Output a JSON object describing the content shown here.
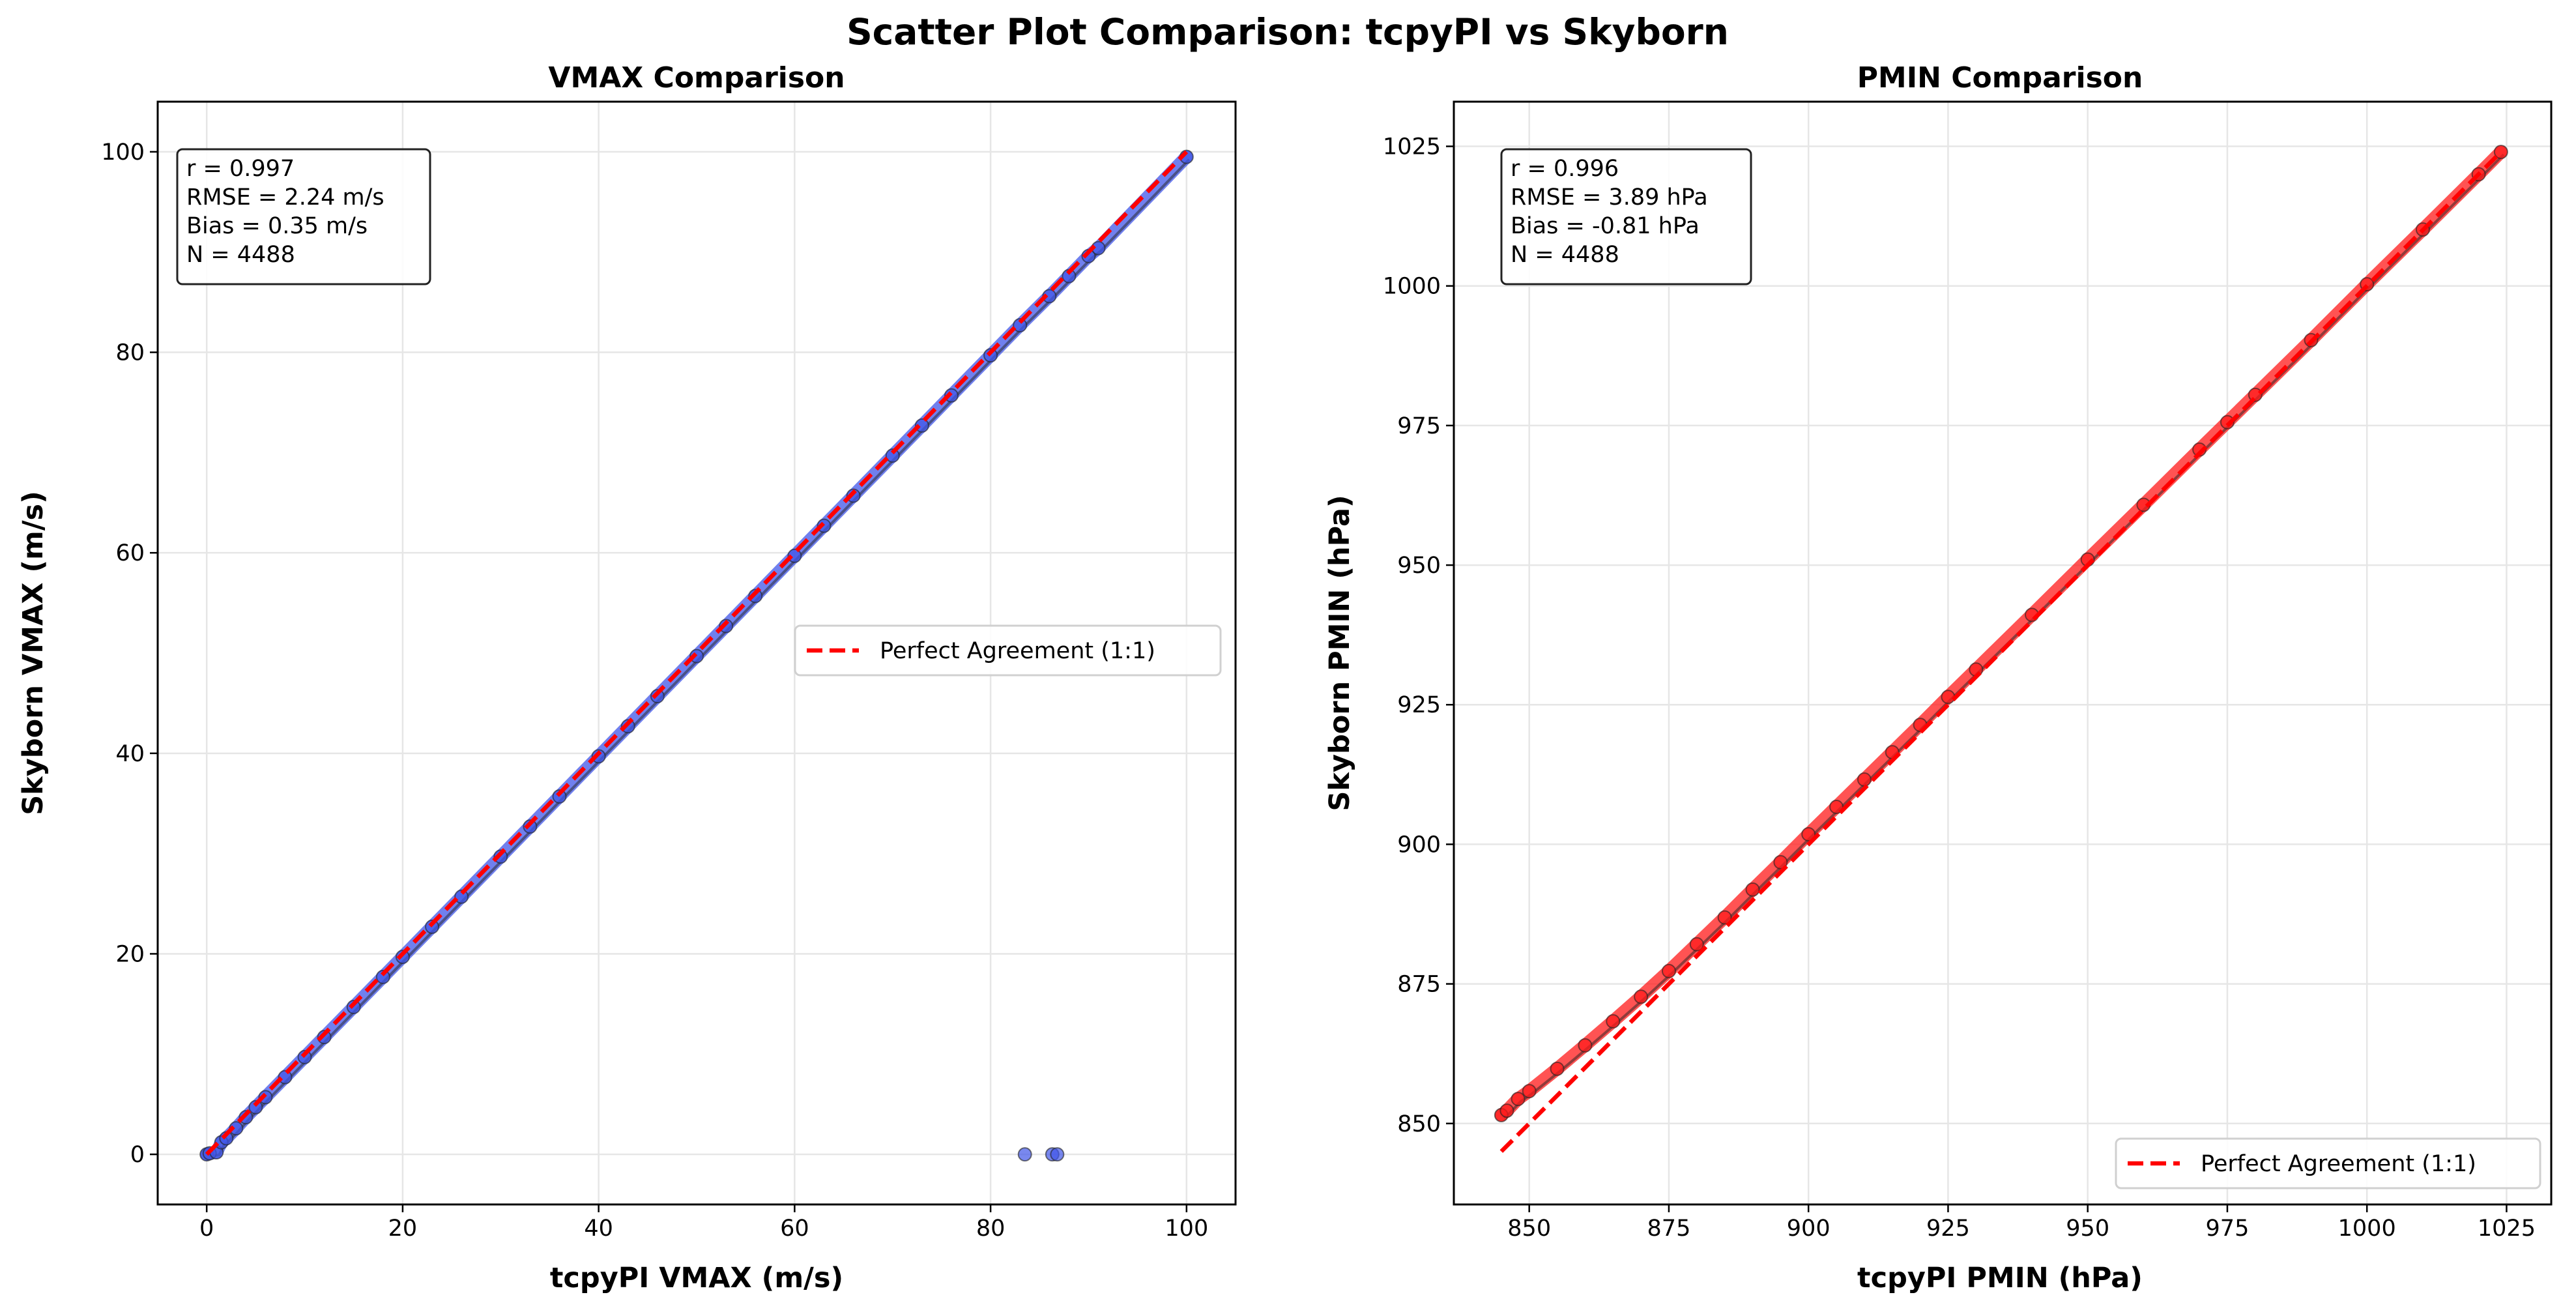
{
  "suptitle": "Scatter Plot Comparison: tcpyPI vs Skyborn",
  "chart_data": [
    {
      "type": "scatter",
      "title": "VMAX Comparison",
      "xlabel": "tcpyPI VMAX (m/s)",
      "ylabel": "Skyborn VMAX (m/s)",
      "xlim": [
        -5,
        105
      ],
      "ylim": [
        -5,
        105
      ],
      "xticks": [
        0,
        20,
        40,
        60,
        80,
        100
      ],
      "yticks": [
        0,
        20,
        40,
        60,
        80,
        100
      ],
      "grid": true,
      "point_color": "#4055e8",
      "line_color": "#ff0000",
      "stats": [
        "r = 0.997",
        "RMSE = 2.24 m/s",
        "Bias = 0.35 m/s",
        "N = 4488"
      ],
      "legend": {
        "label": "Perfect Agreement (1:1)",
        "placement": "center-right"
      },
      "reference_line": [
        0,
        100
      ],
      "points": [
        [
          0,
          0
        ],
        [
          0.3,
          0.1
        ],
        [
          1,
          0.2
        ],
        [
          1.5,
          1.2
        ],
        [
          2,
          1.6
        ],
        [
          3,
          2.6
        ],
        [
          4,
          3.7
        ],
        [
          5,
          4.7
        ],
        [
          6,
          5.7
        ],
        [
          8,
          7.7
        ],
        [
          10,
          9.7
        ],
        [
          12,
          11.7
        ],
        [
          15,
          14.7
        ],
        [
          18,
          17.7
        ],
        [
          20,
          19.7
        ],
        [
          23,
          22.7
        ],
        [
          26,
          25.7
        ],
        [
          30,
          29.7
        ],
        [
          33,
          32.7
        ],
        [
          36,
          35.7
        ],
        [
          40,
          39.7
        ],
        [
          43,
          42.7
        ],
        [
          46,
          45.7
        ],
        [
          50,
          49.7
        ],
        [
          53,
          52.7
        ],
        [
          56,
          55.7
        ],
        [
          60,
          59.7
        ],
        [
          63,
          62.7
        ],
        [
          66,
          65.7
        ],
        [
          70,
          69.7
        ],
        [
          73,
          72.7
        ],
        [
          76,
          75.7
        ],
        [
          80,
          79.7
        ],
        [
          83,
          82.7
        ],
        [
          86,
          85.6
        ],
        [
          88,
          87.6
        ],
        [
          90,
          89.6
        ],
        [
          91,
          90.4
        ],
        [
          100,
          99.5
        ]
      ],
      "outliers": [
        [
          83.5,
          0
        ],
        [
          86.3,
          0
        ],
        [
          86.8,
          0
        ]
      ]
    },
    {
      "type": "scatter",
      "title": "PMIN Comparison",
      "xlabel": "tcpyPI PMIN (hPa)",
      "ylabel": "Skyborn PMIN (hPa)",
      "xlim": [
        836.5,
        1033
      ],
      "ylim": [
        835.5,
        1033
      ],
      "xticks": [
        850,
        875,
        900,
        925,
        950,
        975,
        1000,
        1025
      ],
      "yticks": [
        850,
        875,
        900,
        925,
        950,
        975,
        1000,
        1025
      ],
      "grid": true,
      "point_color": "#ff1a1a",
      "line_color": "#ff0000",
      "stats": [
        "r = 0.996",
        "RMSE = 3.89 hPa",
        "Bias = -0.81 hPa",
        "N = 4488"
      ],
      "legend": {
        "label": "Perfect Agreement (1:1)",
        "placement": "lower-right"
      },
      "reference_line": [
        845,
        1024
      ],
      "points": [
        [
          845,
          851.5
        ],
        [
          846,
          852.3
        ],
        [
          848,
          854.4
        ],
        [
          850,
          855.8
        ],
        [
          855,
          859.8
        ],
        [
          860,
          864.0
        ],
        [
          865,
          868.3
        ],
        [
          870,
          872.7
        ],
        [
          875,
          877.3
        ],
        [
          880,
          882.1
        ],
        [
          885,
          886.9
        ],
        [
          890,
          891.9
        ],
        [
          895,
          896.8
        ],
        [
          900,
          901.8
        ],
        [
          905,
          906.7
        ],
        [
          910,
          911.6
        ],
        [
          915,
          916.5
        ],
        [
          920,
          921.4
        ],
        [
          925,
          926.4
        ],
        [
          930,
          931.3
        ],
        [
          940,
          941.1
        ],
        [
          950,
          951.0
        ],
        [
          960,
          960.8
        ],
        [
          970,
          970.7
        ],
        [
          975,
          975.6
        ],
        [
          980,
          980.5
        ],
        [
          990,
          990.3
        ],
        [
          1000,
          1000.3
        ],
        [
          1010,
          1010.1
        ],
        [
          1020,
          1020.0
        ],
        [
          1024,
          1024.0
        ]
      ],
      "outliers": []
    }
  ]
}
